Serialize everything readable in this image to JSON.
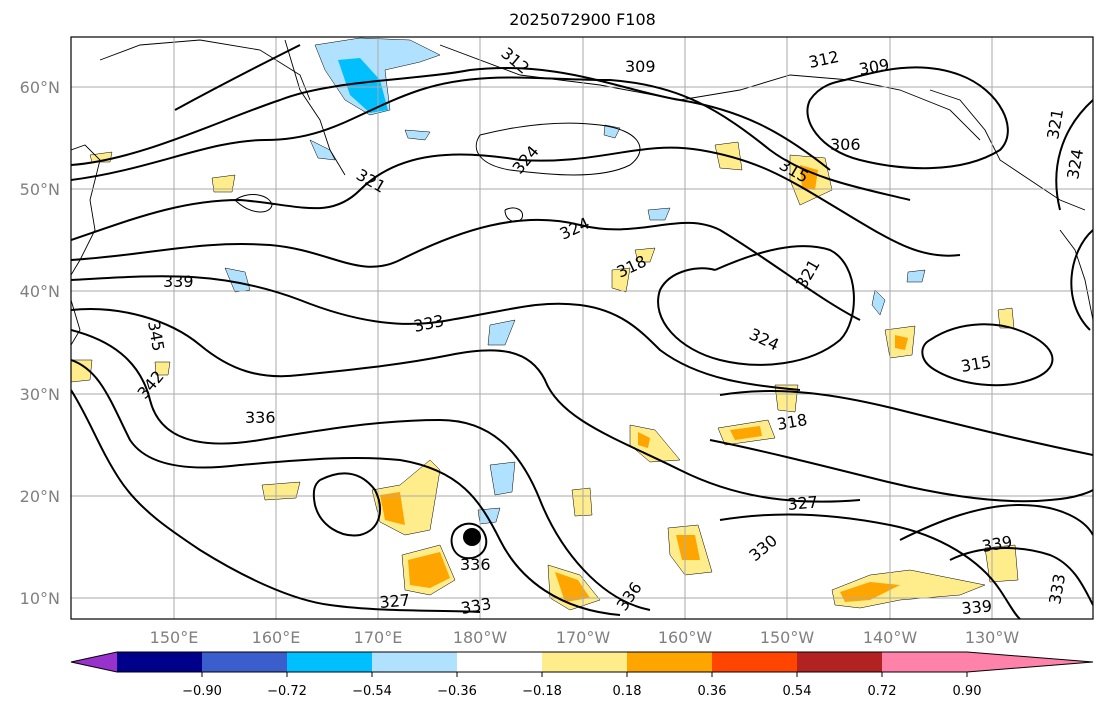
{
  "title": "2025072900 F108",
  "map": {
    "lat_labels": [
      "60°N",
      "50°N",
      "40°N",
      "30°N",
      "20°N",
      "10°N"
    ],
    "lon_labels": [
      "150°E",
      "160°E",
      "170°E",
      "180°W",
      "170°W",
      "160°W",
      "150°W",
      "140°W",
      "130°W"
    ],
    "contour_labels": [
      "312",
      "309",
      "312",
      "309",
      "306",
      "315",
      "321",
      "324",
      "321",
      "324",
      "324",
      "318",
      "321",
      "339",
      "333",
      "324",
      "345",
      "342",
      "336",
      "315",
      "318",
      "327",
      "330",
      "336",
      "339",
      "327",
      "333",
      "336",
      "339",
      "333"
    ],
    "grid": true,
    "storm_marker": "black-dot"
  },
  "colorbar": {
    "ticks": [
      "−0.90",
      "−0.72",
      "−0.54",
      "−0.36",
      "−0.18",
      "0.18",
      "0.36",
      "0.54",
      "0.72",
      "0.90"
    ],
    "colors": [
      "#9932cc",
      "#00008b",
      "#3a5fcd",
      "#00bfff",
      "#b0e2ff",
      "#ffffff",
      "#ffec8b",
      "#ffa500",
      "#ff4500",
      "#b22222",
      "#ff82ab"
    ]
  }
}
